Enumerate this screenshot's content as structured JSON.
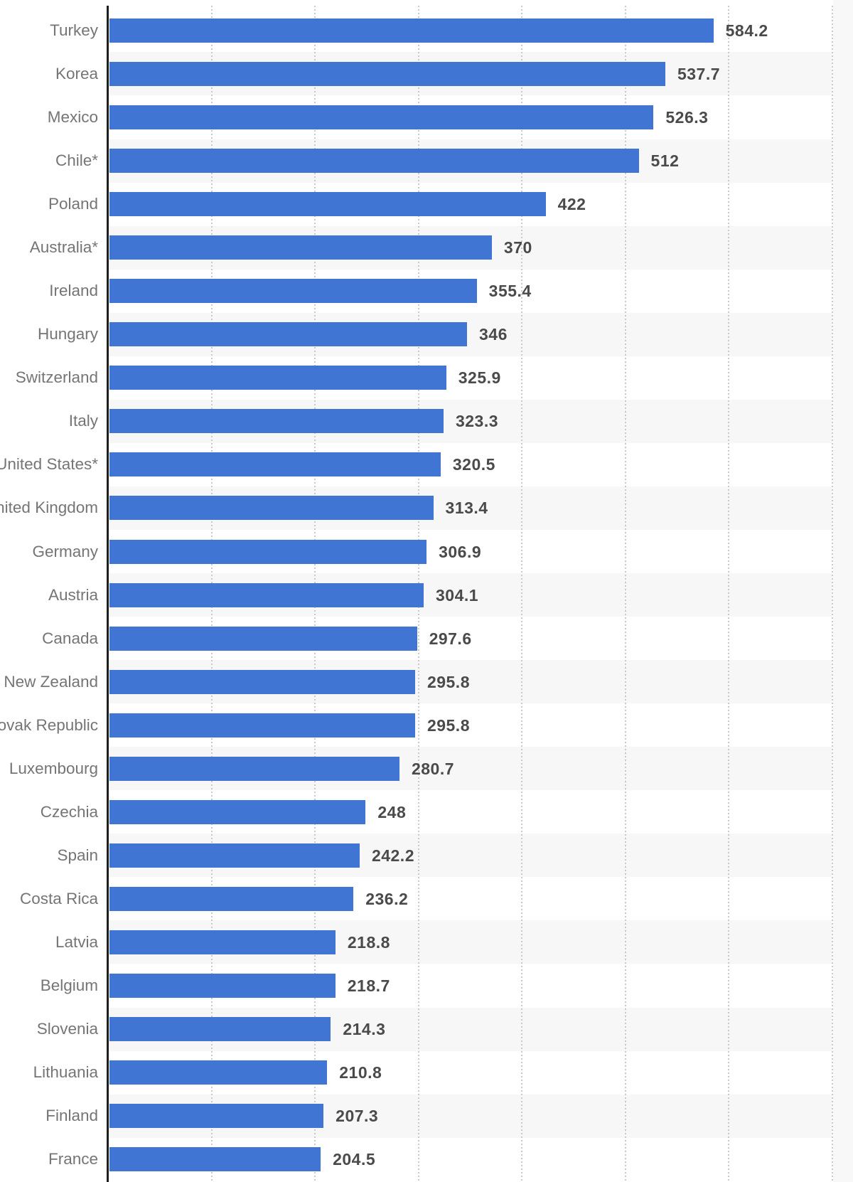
{
  "chart_data": {
    "type": "bar",
    "orientation": "horizontal",
    "categories": [
      "Turkey",
      "Korea",
      "Mexico",
      "Chile*",
      "Poland",
      "Australia*",
      "Ireland",
      "Hungary",
      "Switzerland",
      "Italy",
      "United States*",
      "United Kingdom",
      "Germany",
      "Austria",
      "Canada",
      "New Zealand",
      "Slovak Republic",
      "Luxembourg",
      "Czechia",
      "Spain",
      "Costa Rica",
      "Latvia",
      "Belgium",
      "Slovenia",
      "Lithuania",
      "Finland",
      "France"
    ],
    "values": [
      584.2,
      537.7,
      526.3,
      512,
      422,
      370,
      355.4,
      346,
      325.9,
      323.3,
      320.5,
      313.4,
      306.9,
      304.1,
      297.6,
      295.8,
      295.8,
      280.7,
      248,
      242.2,
      236.2,
      218.8,
      218.7,
      214.3,
      210.8,
      207.3,
      204.5
    ],
    "value_labels": [
      "584.2",
      "537.7",
      "526.3",
      "512",
      "422",
      "370",
      "355.4",
      "346",
      "325.9",
      "323.3",
      "320.5",
      "313.4",
      "306.9",
      "304.1",
      "297.6",
      "295.8",
      "295.8",
      "280.7",
      "248",
      "242.2",
      "236.2",
      "218.8",
      "218.7",
      "214.3",
      "210.8",
      "207.3",
      "204.5"
    ],
    "title": "",
    "xlabel": "",
    "ylabel": "",
    "xlim": [
      0,
      700
    ],
    "grid_step": 100,
    "grid": "vertical-dotted",
    "legend": "none",
    "row_striping": "alternate",
    "colors": {
      "bar": "#4175d4",
      "category_label": "#757575",
      "value_label": "#4a4a4a",
      "stripe": "#f7f7f7",
      "gridline": "#c9c9c9",
      "axis": "#1f1f1f",
      "right_margin": "#f8f8f8",
      "background": "#ffffff"
    }
  }
}
